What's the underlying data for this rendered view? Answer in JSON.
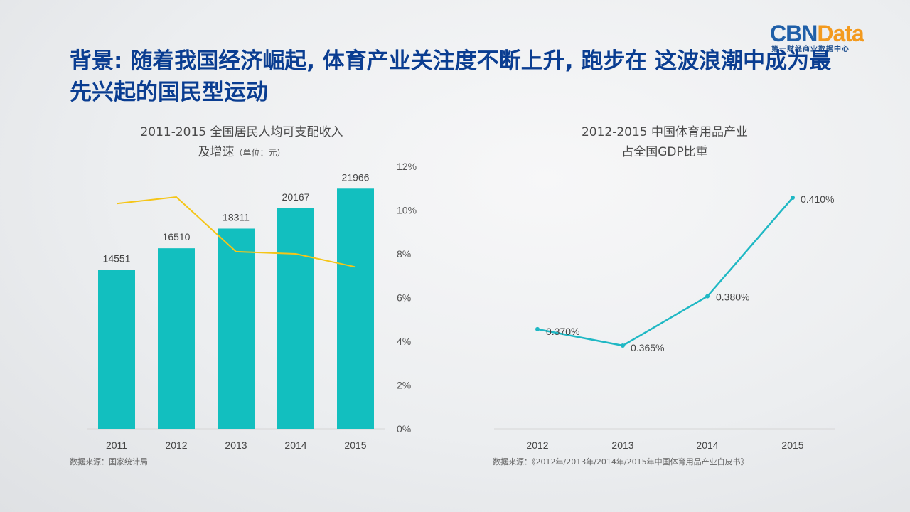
{
  "logo": {
    "main_cbn": "CBN",
    "main_data": "Data",
    "sub": "第一财经商业数据中心"
  },
  "headline": "背景: 随着我国经济崛起, 体育产业关注度不断上升, 跑步在 这波浪潮中成为最先兴起的国民型运动",
  "chart_data": [
    {
      "type": "bar",
      "title_line1": "2011-2015 全国居民人均可支配收入",
      "title_line2": "及增速",
      "title_unit": "（单位：元）",
      "categories": [
        "2011",
        "2012",
        "2013",
        "2014",
        "2015"
      ],
      "values": [
        14551,
        16510,
        18311,
        20167,
        21966
      ],
      "value_labels": [
        "14551",
        "16510",
        "18311",
        "20167",
        "21966"
      ],
      "growth_line": {
        "values": [
          10.3,
          10.6,
          8.1,
          8.0,
          7.4
        ],
        "color": "#f5c518"
      },
      "y2_ticks": [
        "0%",
        "2%",
        "4%",
        "6%",
        "8%",
        "10%",
        "12%"
      ],
      "y2_lim": [
        0,
        12
      ],
      "bar_color": "#12bfbf",
      "source": "数据来源：国家统计局"
    },
    {
      "type": "line",
      "title_line1": "2012-2015 中国体育用品产业",
      "title_line2": "占全国GDP比重",
      "categories": [
        "2012",
        "2013",
        "2014",
        "2015"
      ],
      "values": [
        0.37,
        0.365,
        0.38,
        0.41
      ],
      "value_labels": [
        "0.370%",
        "0.365%",
        "0.380%",
        "0.410%"
      ],
      "line_color": "#1fb8c4",
      "source": "数据来源：《2012年/2013年/2014年/2015年中国体育用品产业白皮书》"
    }
  ]
}
